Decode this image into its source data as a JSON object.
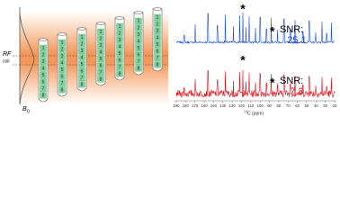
{
  "diagram": {
    "rf": "RF",
    "coil": "coil",
    "b": "B",
    "b_sub": "0",
    "segments": [
      "1",
      "2",
      "3",
      "4",
      "5",
      "6",
      "7",
      "8"
    ]
  },
  "spectra": {
    "ticks": [
      190,
      180,
      170,
      160,
      150,
      140,
      130,
      120,
      110,
      100,
      90,
      80,
      70,
      60,
      50,
      40,
      30,
      20
    ],
    "x_label_sup": "13",
    "x_label": "C (ppm)",
    "panels": [
      {
        "marker": "*",
        "peak_marker": "*",
        "snr_label": "SNR:",
        "snr": 25.1
      },
      {
        "marker": "*",
        "peak_marker": "*",
        "snr_label": "SNR:",
        "snr": 7.3
      }
    ]
  }
}
